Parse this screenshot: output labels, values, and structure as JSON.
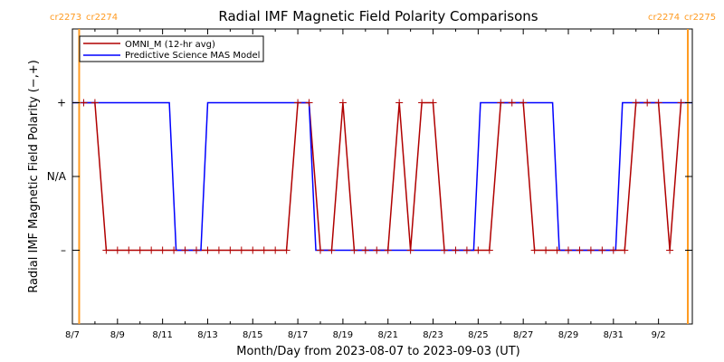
{
  "chart_data": {
    "type": "line",
    "title": "Radial IMF Magnetic Field Polarity Comparisons",
    "xlabel": "Month/Day from 2023-08-07 to 2023-09-03 (UT)",
    "ylabel": "Radial IMF Magnetic Field Polarity (−,+)",
    "x_range_days": [
      0,
      27.5
    ],
    "y_categories": [
      {
        "label": "+",
        "value": 1
      },
      {
        "label": "N/A",
        "value": 0
      },
      {
        "label": "–",
        "value": -1
      }
    ],
    "ylim": [
      -2,
      2
    ],
    "x_ticks": [
      {
        "label": "8/7",
        "day": 0
      },
      {
        "label": "8/9",
        "day": 2
      },
      {
        "label": "8/11",
        "day": 4
      },
      {
        "label": "8/13",
        "day": 6
      },
      {
        "label": "8/15",
        "day": 8
      },
      {
        "label": "8/17",
        "day": 10
      },
      {
        "label": "8/19",
        "day": 12
      },
      {
        "label": "8/21",
        "day": 14
      },
      {
        "label": "8/23",
        "day": 16
      },
      {
        "label": "8/25",
        "day": 18
      },
      {
        "label": "8/27",
        "day": 20
      },
      {
        "label": "8/29",
        "day": 22
      },
      {
        "label": "8/31",
        "day": 24
      },
      {
        "label": "9/2",
        "day": 26
      }
    ],
    "carrington_markers": [
      {
        "day": 0.3,
        "labels": [
          "cr2273",
          "cr2274"
        ],
        "side": "left"
      },
      {
        "day": 27.3,
        "labels": [
          "cr2274",
          "cr2275"
        ],
        "side": "right"
      }
    ],
    "legend": {
      "position": "top-left"
    },
    "series": [
      {
        "name": "OMNI_M (12-hr avg)",
        "color": "#b00000",
        "markers": "plus",
        "x": [
          0.5,
          1.0,
          1.5,
          2.0,
          2.5,
          3.0,
          3.5,
          4.0,
          4.5,
          5.0,
          5.5,
          6.0,
          6.5,
          7.0,
          7.5,
          8.0,
          8.5,
          9.0,
          9.5,
          10.0,
          10.5,
          11.0,
          11.5,
          12.0,
          12.5,
          13.0,
          13.5,
          14.0,
          14.5,
          15.0,
          15.5,
          16.0,
          16.5,
          17.0,
          17.5,
          18.0,
          18.5,
          19.0,
          19.5,
          20.0,
          20.5,
          21.0,
          21.5,
          22.0,
          22.5,
          23.0,
          23.5,
          24.0,
          24.5,
          25.0,
          25.5,
          26.0,
          26.5,
          27.0
        ],
        "y": [
          1,
          1,
          -1,
          -1,
          -1,
          -1,
          -1,
          -1,
          -1,
          -1,
          -1,
          -1,
          -1,
          -1,
          -1,
          -1,
          -1,
          -1,
          -1,
          1,
          1,
          -1,
          -1,
          1,
          -1,
          -1,
          -1,
          -1,
          1,
          -1,
          1,
          1,
          -1,
          -1,
          -1,
          -1,
          -1,
          1,
          1,
          1,
          -1,
          -1,
          -1,
          -1,
          -1,
          -1,
          -1,
          -1,
          -1,
          1,
          1,
          1,
          -1,
          1
        ]
      },
      {
        "name": "Predictive Science MAS Model",
        "color": "#0000ff",
        "markers": "none",
        "x": [
          0,
          4.3,
          4.6,
          5.7,
          6.0,
          10.5,
          10.8,
          17.8,
          18.1,
          21.3,
          21.6,
          24.1,
          24.4,
          27.5
        ],
        "y": [
          1,
          1,
          -1,
          -1,
          1,
          1,
          -1,
          -1,
          1,
          1,
          -1,
          -1,
          1,
          1
        ]
      }
    ]
  }
}
